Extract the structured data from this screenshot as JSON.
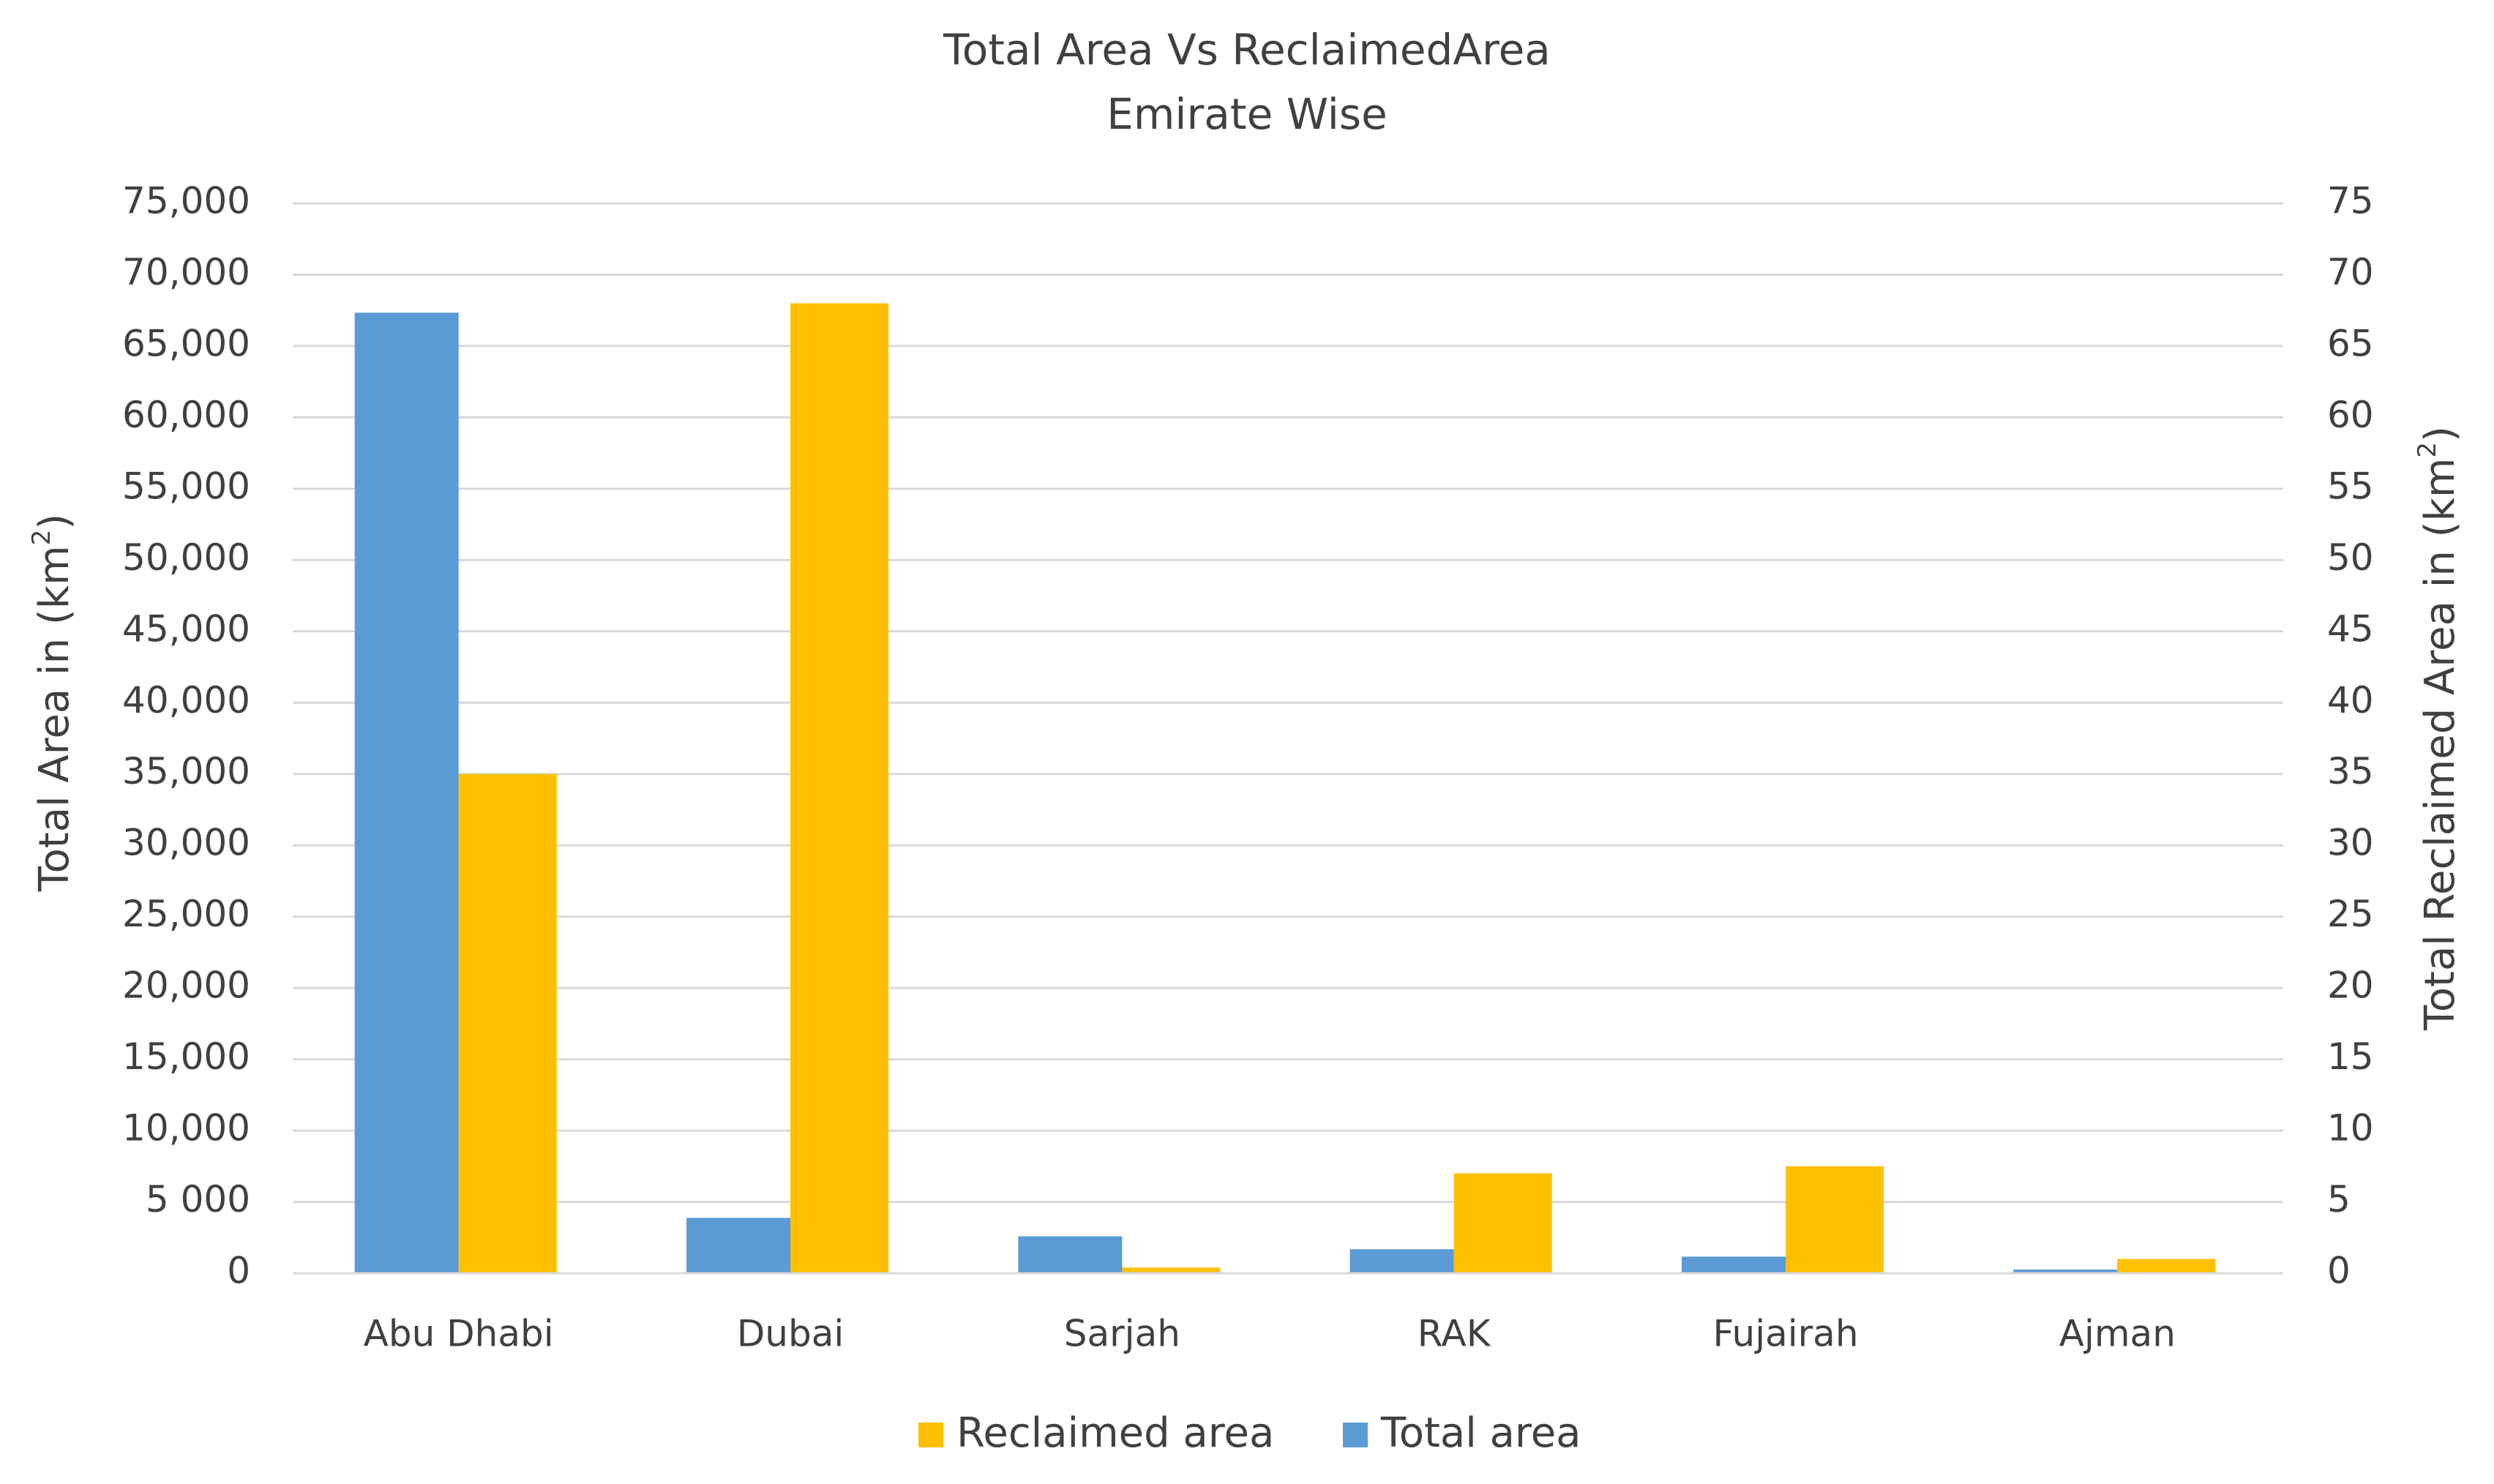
{
  "chart_data": {
    "type": "bar",
    "title": "Total Area Vs ReclaimedArea",
    "subtitle": "Emirate Wise",
    "categories": [
      "Abu Dhabi",
      "Dubai",
      "Sarjah",
      "RAK",
      "Fujairah",
      "Ajman"
    ],
    "series": [
      {
        "name": "Total area",
        "axis": "left",
        "color": "#5B9BD5",
        "values": [
          67340,
          3885,
          2590,
          1684,
          1165,
          259
        ]
      },
      {
        "name": "Reclaimed area",
        "axis": "right",
        "color": "#FFC000",
        "values": [
          35,
          68,
          0.4,
          7,
          7.5,
          1
        ]
      }
    ],
    "y_left": {
      "label": "Total Area in (km²)",
      "label_main": "Total Area in (km",
      "label_sup": "2",
      "label_close": ")",
      "ylim": [
        0,
        75000
      ],
      "ticks": [
        "0",
        "5 000",
        "10,000",
        "15,000",
        "20,000",
        "25,000",
        "30,000",
        "35,000",
        "40,000",
        "45,000",
        "50,000",
        "55,000",
        "60,000",
        "65,000",
        "70,000",
        "75,000"
      ]
    },
    "y_right": {
      "label": "Total Reclaimed Area in (km²)",
      "label_main": "Total Reclaimed Area in (km",
      "label_sup": "2",
      "label_close": ")",
      "ylim": [
        0,
        75
      ],
      "ticks": [
        "0",
        "5",
        "10",
        "15",
        "20",
        "25",
        "30",
        "35",
        "40",
        "45",
        "50",
        "55",
        "60",
        "65",
        "70",
        "75"
      ]
    },
    "legend": {
      "position": "bottom",
      "entries": [
        {
          "label": "Reclaimed area",
          "color": "#FFC000"
        },
        {
          "label": "Total area",
          "color": "#5B9BD5"
        }
      ]
    },
    "grid": true
  }
}
